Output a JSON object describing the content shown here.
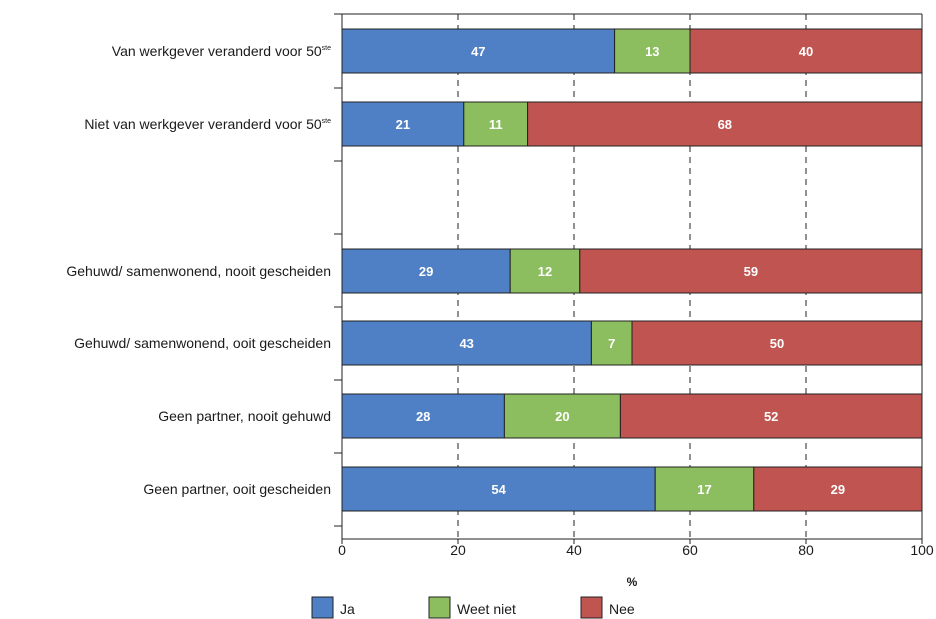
{
  "chart_data": {
    "type": "bar",
    "orientation": "horizontal",
    "stacked": true,
    "categories": [
      {
        "label": "Van werkgever veranderd voor 50",
        "sup": "ste"
      },
      {
        "label": "Niet van werkgever veranderd voor 50",
        "sup": "ste"
      },
      null,
      {
        "label": "Gehuwd/ samenwonend, nooit gescheiden",
        "sup": ""
      },
      {
        "label": "Gehuwd/ samenwonend, ooit gescheiden",
        "sup": ""
      },
      {
        "label": "Geen partner, nooit gehuwd",
        "sup": ""
      },
      {
        "label": "Geen partner, ooit gescheiden",
        "sup": ""
      }
    ],
    "series": [
      {
        "name": "Ja",
        "color": "#4f7fc4",
        "values": [
          47,
          21,
          null,
          29,
          43,
          28,
          54
        ]
      },
      {
        "name": "Weet niet",
        "color": "#8cbd5f",
        "values": [
          13,
          11,
          null,
          12,
          7,
          20,
          17
        ]
      },
      {
        "name": "Nee",
        "color": "#c05451",
        "values": [
          40,
          68,
          null,
          59,
          50,
          52,
          29
        ]
      }
    ],
    "xlim": [
      0,
      100
    ],
    "xticks": [
      0,
      20,
      40,
      60,
      80,
      100
    ],
    "xlabel": "%",
    "grid": "vertical dashed",
    "legend_position": "bottom"
  }
}
